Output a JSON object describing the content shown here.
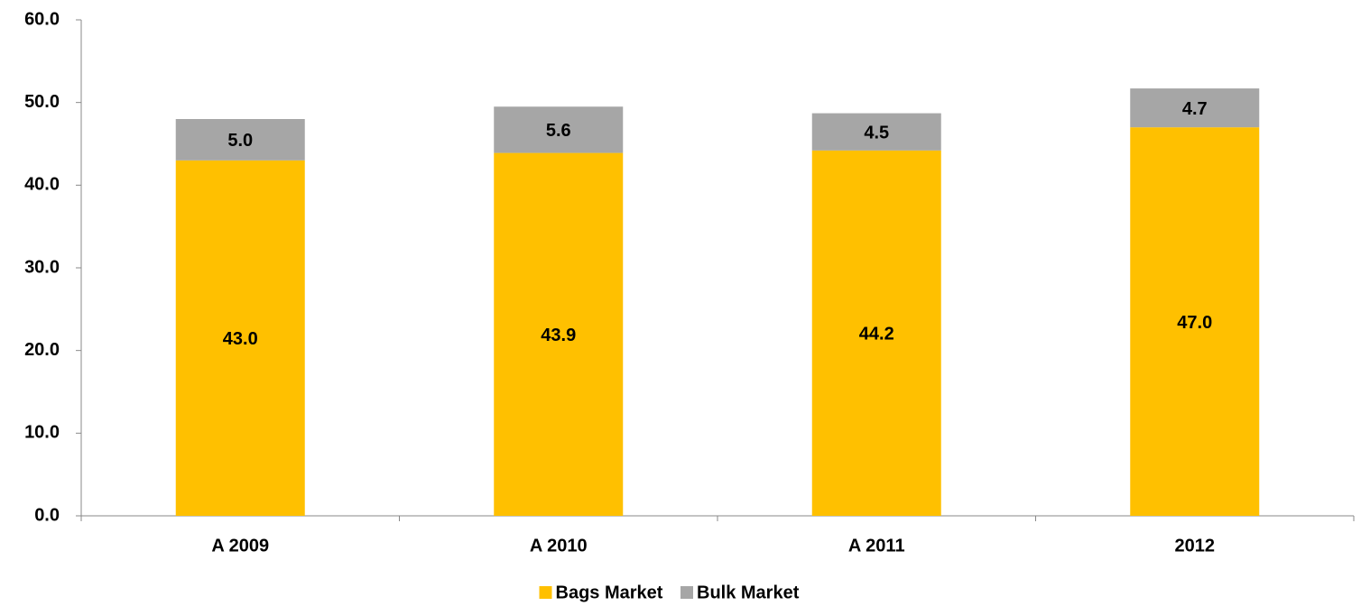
{
  "chart_data": {
    "type": "stacked_bar",
    "categories": [
      "A 2009",
      "A 2010",
      "A 2011",
      "2012"
    ],
    "series": [
      {
        "name": "Bags Market",
        "color": "#ffc000",
        "values": [
          43.0,
          43.9,
          44.2,
          47.0
        ],
        "value_labels": [
          "43.0",
          "43.9",
          "44.2",
          "47.0"
        ]
      },
      {
        "name": "Bulk Market",
        "color": "#a6a6a6",
        "values": [
          5.0,
          5.6,
          4.5,
          4.7
        ],
        "value_labels": [
          "5.0",
          "5.6",
          "4.5",
          "4.7"
        ]
      }
    ],
    "ylim": [
      0,
      60
    ],
    "yticks": [
      {
        "value": 0,
        "label": "0.0"
      },
      {
        "value": 10,
        "label": "10.0"
      },
      {
        "value": 20,
        "label": "20.0"
      },
      {
        "value": 30,
        "label": "30.0"
      },
      {
        "value": 40,
        "label": "40.0"
      },
      {
        "value": 50,
        "label": "50.0"
      },
      {
        "value": 60,
        "label": "60.0"
      }
    ],
    "grid": false,
    "legend": "bottom"
  }
}
